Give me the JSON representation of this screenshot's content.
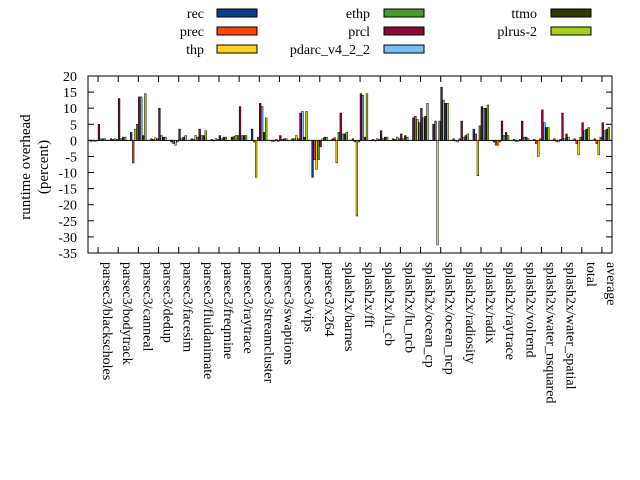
{
  "chart_data": {
    "type": "bar",
    "title": "",
    "xlabel": "",
    "ylabel_line1": "runtime overhead",
    "ylabel_line2": "(percent)",
    "ylim": [
      -35,
      20
    ],
    "yticks": [
      20,
      15,
      10,
      5,
      0,
      -5,
      -10,
      -15,
      -20,
      -25,
      -30,
      -35
    ],
    "legend_placement": "top",
    "categories": [
      "parsec3/blackscholes",
      "parsec3/bodytrack",
      "parsec3/canneal",
      "parsec3/dedup",
      "parsec3/facesim",
      "parsec3/fluidanimate",
      "parsec3/freqmine",
      "parsec3/raytrace",
      "parsec3/streamcluster",
      "parsec3/swaptions",
      "parsec3/vips",
      "parsec3/x264",
      "splash2x/barnes",
      "splash2x/fft",
      "splash2x/lu_cb",
      "splash2x/lu_ncb",
      "splash2x/ocean_cp",
      "splash2x/ocean_ncp",
      "splash2x/radiosity",
      "splash2x/radix",
      "splash2x/raytrace",
      "splash2x/volrend",
      "splash2x/water_nsquared",
      "splash2x/water_spatial",
      "total",
      "average"
    ],
    "series": [
      {
        "name": "rec",
        "color": "#0b3d8c",
        "values": [
          -0.3,
          0.5,
          2.5,
          0.5,
          -0.5,
          0.5,
          0.3,
          1.0,
          3.5,
          -0.3,
          0.5,
          -11.5,
          0.5,
          0.5,
          0.3,
          0.5,
          7.0,
          5.0,
          0.5,
          3.5,
          -0.5,
          0.3,
          0.3,
          0.5,
          0.5,
          0.5
        ]
      },
      {
        "name": "prec",
        "color": "#ff4500",
        "values": [
          -0.2,
          0.3,
          -7.0,
          0.3,
          -1.0,
          0.3,
          -0.2,
          1.2,
          -0.5,
          -0.3,
          0.5,
          -6.0,
          0.8,
          -0.5,
          -0.2,
          0.3,
          7.5,
          6.0,
          -0.2,
          2.0,
          -1.5,
          -0.3,
          -1.0,
          -0.3,
          -1.0,
          -1.0
        ]
      },
      {
        "name": "thp",
        "color": "#ffd21f",
        "values": [
          -0.3,
          0.5,
          3.5,
          0.8,
          -1.5,
          1.5,
          0.5,
          1.5,
          -11.5,
          0.3,
          1.5,
          -9.0,
          -7.0,
          -23.5,
          0.5,
          1.0,
          6.5,
          -32.5,
          -0.5,
          -11.0,
          -1.5,
          -0.3,
          -5.0,
          -0.5,
          -4.5,
          -4.5
        ]
      },
      {
        "name": "ethp",
        "color": "#4a9a2c",
        "values": [
          -0.2,
          0.3,
          5.0,
          0.5,
          -0.5,
          1.0,
          0.3,
          1.5,
          1.0,
          -0.3,
          0.5,
          -6.0,
          2.5,
          -0.5,
          0.3,
          0.5,
          5.5,
          6.0,
          0.5,
          4.5,
          -0.5,
          0.3,
          0.5,
          0.3,
          1.0,
          1.0
        ]
      },
      {
        "name": "prcl",
        "color": "#8b0a36",
        "values": [
          5.0,
          13.0,
          13.5,
          10.0,
          3.5,
          3.5,
          1.5,
          10.5,
          11.5,
          1.5,
          8.5,
          -2.0,
          8.5,
          14.5,
          3.0,
          2.0,
          10.0,
          16.5,
          6.0,
          10.5,
          6.0,
          6.0,
          9.5,
          8.5,
          5.5,
          5.5
        ]
      },
      {
        "name": "pdarc_v4_2_2",
        "color": "#73c0f7",
        "values": [
          0.5,
          0.5,
          13.5,
          1.5,
          0.5,
          1.5,
          0.5,
          1.5,
          10.5,
          0.3,
          9.0,
          0.5,
          2.0,
          14.0,
          0.5,
          0.5,
          7.0,
          12.5,
          1.0,
          10.0,
          1.5,
          1.0,
          5.5,
          0.5,
          3.0,
          3.0
        ]
      },
      {
        "name": "ttmo",
        "color": "#2f3a05",
        "values": [
          0.5,
          1.0,
          1.5,
          1.0,
          1.0,
          1.5,
          1.0,
          1.5,
          2.5,
          0.5,
          1.0,
          1.0,
          2.0,
          1.0,
          1.0,
          1.5,
          7.5,
          11.5,
          1.5,
          10.0,
          2.5,
          1.0,
          4.0,
          2.0,
          3.5,
          3.5
        ]
      },
      {
        "name": "plrus-2",
        "color": "#a8cf17",
        "values": [
          0.5,
          1.0,
          14.5,
          1.0,
          1.5,
          3.0,
          1.0,
          1.5,
          7.0,
          0.5,
          9.0,
          1.0,
          2.5,
          14.5,
          1.0,
          1.0,
          11.5,
          11.5,
          2.0,
          11.0,
          1.5,
          0.5,
          4.0,
          1.0,
          4.0,
          4.0
        ]
      }
    ]
  }
}
